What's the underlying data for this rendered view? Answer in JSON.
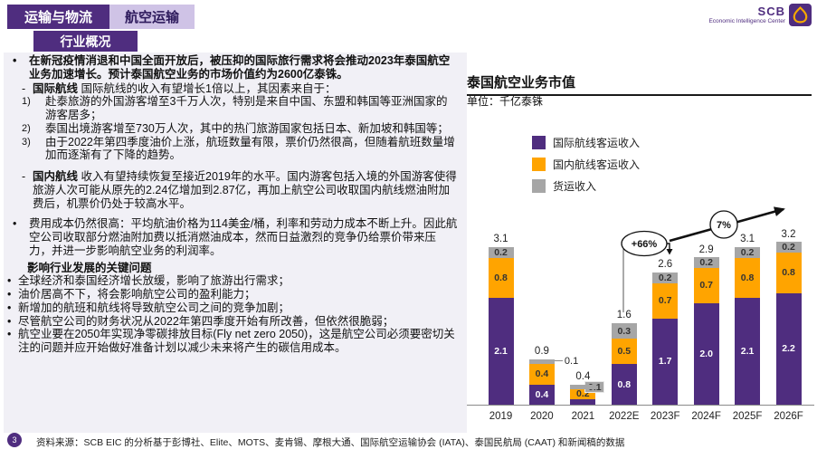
{
  "header": {
    "category_tab": "运输与物流",
    "active_tab": "航空运输",
    "section_badge": "行业概况",
    "logo": {
      "brand": "SCB",
      "subtitle": "Economic Intelligence Center"
    }
  },
  "left_panel": {
    "intro_bullet": "•",
    "intro": "在新冠疫情消退和中国全面开放后，被压抑的国际旅行需求将会推动2023年泰国航空业务加速增长。预计泰国航空业务的市场价值约为2600亿泰铢。",
    "international_dash": "-",
    "international_label": "国际航线",
    "international_text": "国际航线的收入有望增长1倍以上，其因素来自于：",
    "international_items": [
      {
        "num": "1)",
        "text": "赴泰旅游的外国游客增至3千万人次，特别是来自中国、东盟和韩国等亚洲国家的游客居多；"
      },
      {
        "num": "2)",
        "text": "泰国出境游客增至730万人次，其中的热门旅游国家包括日本、新加坡和韩国等；"
      },
      {
        "num": "3)",
        "text": "由于2022年第四季度油价上涨，航班数量有限，票价仍然很高，但随着航班数量增加而逐渐有了下降的趋势。"
      }
    ],
    "domestic_dash": "-",
    "domestic_label": "国内航线",
    "domestic_text": "收入有望持续恢复至接近2019年的水平。国内游客包括入境的外国游客使得旅游人次可能从原先的2.24亿增加到2.87亿，再加上航空公司收取国内航线燃油附加费后，机票价仍处于较高水平。",
    "cost_bullet": "•",
    "cost_text": "费用成本仍然很高：平均航油价格为114美金/桶，利率和劳动力成本不断上升。因此航空公司收取部分燃油附加费以抵消燃油成本，然而日益激烈的竞争仍给票价带来压力，并进一步影响航空业务的利润率。",
    "issues_heading": "影响行业发展的关键问题",
    "issues": [
      "全球经济和泰国经济增长放缓，影响了旅游出行需求；",
      "油价居高不下，将会影响航空公司的盈利能力；",
      "新增加的航班和航线将导致航空公司之间的竞争加剧；",
      "尽管航空公司的财务状况从2022年第四季度开始有所改善，但依然很脆弱；",
      "航空业要在2050年实现净零碳排放目标(Fly net zero 2050)，这是航空公司必须要密切关注的问题并应开始做好准备计划以减少未来将产生的碳信用成本。"
    ]
  },
  "chart_data": {
    "type": "bar",
    "stacked": true,
    "title": "泰国航空业务市值",
    "unit_label": "单位：千亿泰铢",
    "categories": [
      "2019",
      "2020",
      "2021",
      "2022E",
      "2023F",
      "2024F",
      "2025F",
      "2026F"
    ],
    "series": [
      {
        "name": "国际航线客运收入",
        "color": "#4f2d7f",
        "values": [
          2.1,
          0.4,
          0.1,
          0.8,
          1.7,
          2.0,
          2.1,
          2.2
        ]
      },
      {
        "name": "国内航线客运收入",
        "color": "#ffa400",
        "values": [
          0.8,
          0.4,
          0.2,
          0.5,
          0.7,
          0.7,
          0.8,
          0.8
        ]
      },
      {
        "name": "货运收入",
        "color": "#a6a6a6",
        "values": [
          0.2,
          0.1,
          0.1,
          0.3,
          0.2,
          0.2,
          0.2,
          0.2
        ]
      }
    ],
    "totals": [
      3.1,
      0.9,
      0.4,
      1.6,
      2.6,
      2.9,
      3.1,
      3.2
    ],
    "label_overrides": {
      "1:2": "callout",
      "2:0": "hide",
      "2:2": "chip"
    },
    "annotations": [
      {
        "label": "+66%",
        "note": "increase from 2022E to 2023F"
      },
      {
        "label": "7%",
        "note": "growth trend arrow 2023F-2026F"
      }
    ],
    "ylim": [
      0,
      3.5
    ],
    "grid": false,
    "legend_position": "top-left"
  },
  "footer": {
    "page_number": "3",
    "source": "资料来源：SCB EIC 的分析基于彭博社、Elite、MOTS、麦肯锡、摩根大通、国际航空运输协会 (IATA)、泰国民航局 (CAAT) 和新闻稿的数据"
  },
  "colors": {
    "brand_purple": "#4f2d7f",
    "light_purple": "#cfc3e6",
    "orange": "#ffa400",
    "gray": "#a6a6a6",
    "panel_bg": "#f1f0f6"
  }
}
